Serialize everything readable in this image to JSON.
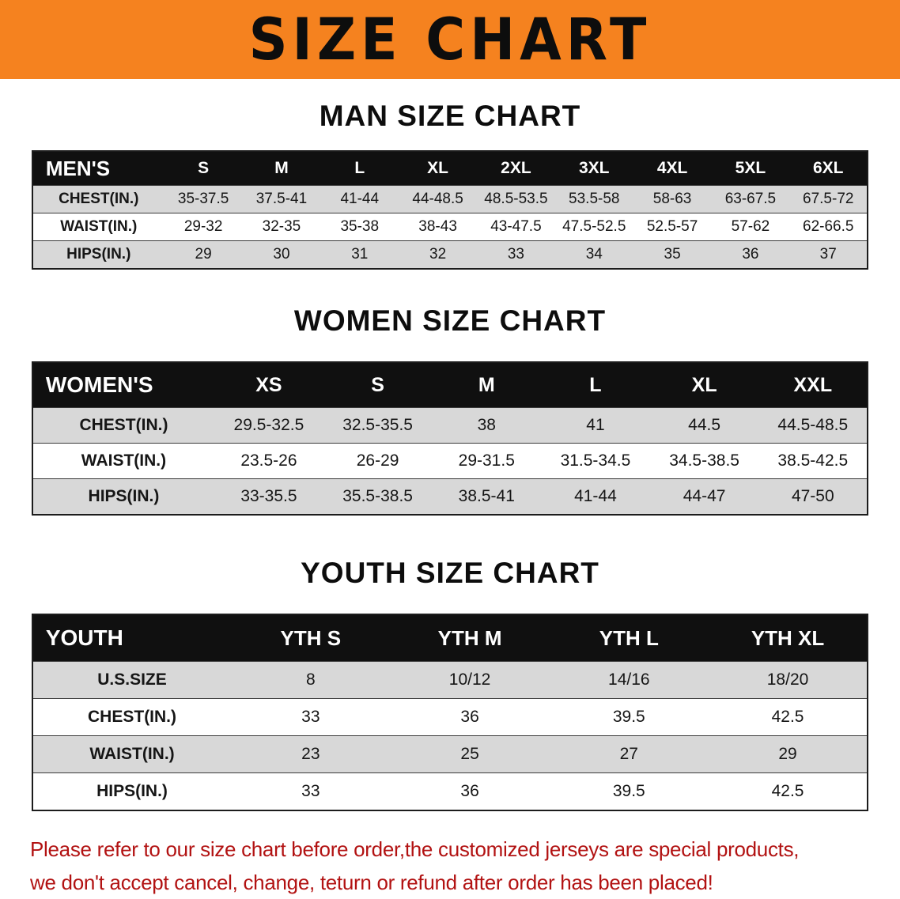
{
  "colors": {
    "banner_bg": "#f5821f",
    "table_header_bg": "#101010",
    "row_stripe": "#d8d8d8",
    "footer_text": "#b21212"
  },
  "banner": {
    "title": "SIZE CHART"
  },
  "sections": [
    {
      "title": "MAN SIZE CHART",
      "table": {
        "header": [
          "MEN'S",
          "S",
          "M",
          "L",
          "XL",
          "2XL",
          "3XL",
          "4XL",
          "5XL",
          "6XL"
        ],
        "rows": [
          [
            "CHEST(IN.)",
            "35-37.5",
            "37.5-41",
            "41-44",
            "44-48.5",
            "48.5-53.5",
            "53.5-58",
            "58-63",
            "63-67.5",
            "67.5-72"
          ],
          [
            "WAIST(IN.)",
            "29-32",
            "32-35",
            "35-38",
            "38-43",
            "43-47.5",
            "47.5-52.5",
            "52.5-57",
            "57-62",
            "62-66.5"
          ],
          [
            "HIPS(IN.)",
            "29",
            "30",
            "31",
            "32",
            "33",
            "34",
            "35",
            "36",
            "37"
          ]
        ]
      }
    },
    {
      "title": "WOMEN SIZE CHART",
      "table": {
        "header": [
          "WOMEN'S",
          "XS",
          "S",
          "M",
          "L",
          "XL",
          "XXL"
        ],
        "rows": [
          [
            "CHEST(IN.)",
            "29.5-32.5",
            "32.5-35.5",
            "38",
            "41",
            "44.5",
            "44.5-48.5"
          ],
          [
            "WAIST(IN.)",
            "23.5-26",
            "26-29",
            "29-31.5",
            "31.5-34.5",
            "34.5-38.5",
            "38.5-42.5"
          ],
          [
            "HIPS(IN.)",
            "33-35.5",
            "35.5-38.5",
            "38.5-41",
            "41-44",
            "44-47",
            "47-50"
          ]
        ]
      }
    },
    {
      "title": "YOUTH SIZE CHART",
      "table": {
        "header": [
          "YOUTH",
          "YTH S",
          "YTH M",
          "YTH L",
          "YTH XL"
        ],
        "rows": [
          [
            "U.S.SIZE",
            "8",
            "10/12",
            "14/16",
            "18/20"
          ],
          [
            "CHEST(IN.)",
            "33",
            "36",
            "39.5",
            "42.5"
          ],
          [
            "WAIST(IN.)",
            "23",
            "25",
            "27",
            "29"
          ],
          [
            "HIPS(IN.)",
            "33",
            "36",
            "39.5",
            "42.5"
          ]
        ]
      }
    }
  ],
  "footer": {
    "line1": "Please refer to our size chart before order,the customized jerseys are special products,",
    "line2": "we don't accept cancel, change, teturn or refund after order has been placed!"
  }
}
